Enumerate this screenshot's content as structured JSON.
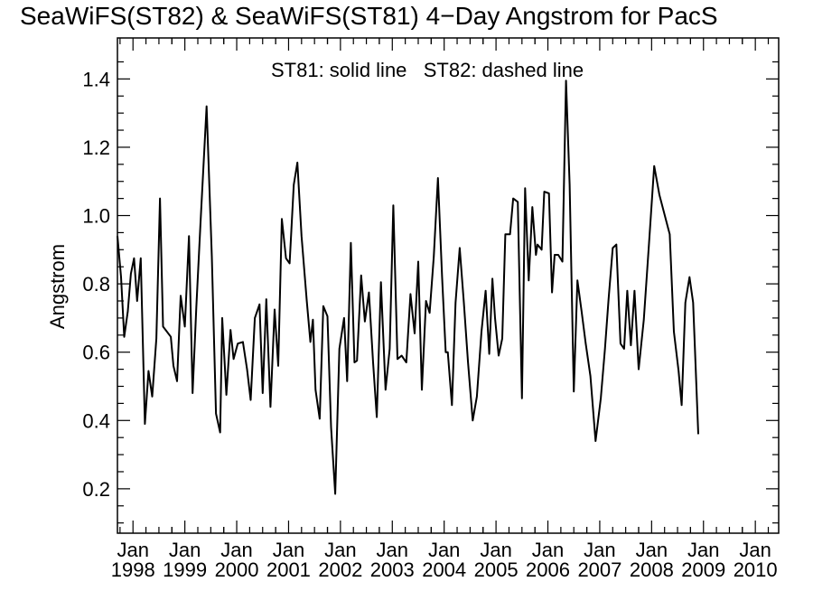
{
  "chart_data": {
    "type": "line",
    "title": "SeaWiFS(ST82) & SeaWiFS(ST81) 4−Day Angstrom for PacS",
    "ylabel": "Angstrom",
    "xlabel": "",
    "annotation": "ST81: solid line   ST82: dashed line",
    "ylim": [
      0.07,
      1.52
    ],
    "xlim": [
      1997.7,
      2010.45
    ],
    "yticks": [
      0.2,
      0.4,
      0.6,
      0.8,
      1.0,
      1.2,
      1.4
    ],
    "ytick_labels": [
      "0.2",
      "0.4",
      "0.6",
      "0.8",
      "1.0",
      "1.2",
      "1.4"
    ],
    "xticks": [
      1998,
      1999,
      2000,
      2001,
      2002,
      2003,
      2004,
      2005,
      2006,
      2007,
      2008,
      2009,
      2010
    ],
    "xtick_month": "Jan",
    "xtick_years": [
      "1998",
      "1999",
      "2000",
      "2001",
      "2002",
      "2003",
      "2004",
      "2005",
      "2006",
      "2007",
      "2008",
      "2009",
      "2010"
    ],
    "grid": false,
    "line_color": "#000000",
    "series": [
      {
        "values": [
          [
            1997.7,
            0.94
          ],
          [
            1997.77,
            0.82
          ],
          [
            1997.83,
            0.645
          ],
          [
            1997.9,
            0.72
          ],
          [
            1997.96,
            0.83
          ],
          [
            1998.02,
            0.875
          ],
          [
            1998.08,
            0.75
          ],
          [
            1998.15,
            0.875
          ],
          [
            1998.23,
            0.39
          ],
          [
            1998.3,
            0.545
          ],
          [
            1998.37,
            0.47
          ],
          [
            1998.45,
            0.64
          ],
          [
            1998.52,
            1.05
          ],
          [
            1998.58,
            0.675
          ],
          [
            1998.73,
            0.645
          ],
          [
            1998.78,
            0.56
          ],
          [
            1998.85,
            0.515
          ],
          [
            1998.92,
            0.765
          ],
          [
            1999.0,
            0.675
          ],
          [
            1999.08,
            0.94
          ],
          [
            1999.15,
            0.48
          ],
          [
            1999.22,
            0.73
          ],
          [
            1999.3,
            0.975
          ],
          [
            1999.42,
            1.32
          ],
          [
            1999.52,
            0.88
          ],
          [
            1999.6,
            0.42
          ],
          [
            1999.68,
            0.365
          ],
          [
            1999.72,
            0.7
          ],
          [
            1999.8,
            0.475
          ],
          [
            1999.88,
            0.665
          ],
          [
            1999.94,
            0.58
          ],
          [
            2000.02,
            0.625
          ],
          [
            2000.12,
            0.63
          ],
          [
            2000.2,
            0.55
          ],
          [
            2000.27,
            0.46
          ],
          [
            2000.35,
            0.7
          ],
          [
            2000.44,
            0.74
          ],
          [
            2000.5,
            0.48
          ],
          [
            2000.57,
            0.755
          ],
          [
            2000.65,
            0.44
          ],
          [
            2000.73,
            0.725
          ],
          [
            2000.8,
            0.56
          ],
          [
            2000.87,
            0.99
          ],
          [
            2000.95,
            0.875
          ],
          [
            2001.02,
            0.86
          ],
          [
            2001.1,
            1.09
          ],
          [
            2001.17,
            1.155
          ],
          [
            2001.25,
            0.94
          ],
          [
            2001.35,
            0.75
          ],
          [
            2001.42,
            0.63
          ],
          [
            2001.47,
            0.695
          ],
          [
            2001.52,
            0.49
          ],
          [
            2001.6,
            0.405
          ],
          [
            2001.67,
            0.735
          ],
          [
            2001.75,
            0.705
          ],
          [
            2001.82,
            0.38
          ],
          [
            2001.9,
            0.185
          ],
          [
            2001.98,
            0.61
          ],
          [
            2002.07,
            0.7
          ],
          [
            2002.13,
            0.515
          ],
          [
            2002.2,
            0.92
          ],
          [
            2002.27,
            0.57
          ],
          [
            2002.32,
            0.575
          ],
          [
            2002.4,
            0.825
          ],
          [
            2002.47,
            0.69
          ],
          [
            2002.55,
            0.775
          ],
          [
            2002.63,
            0.57
          ],
          [
            2002.7,
            0.41
          ],
          [
            2002.78,
            0.805
          ],
          [
            2002.87,
            0.49
          ],
          [
            2002.95,
            0.61
          ],
          [
            2003.02,
            1.03
          ],
          [
            2003.1,
            0.58
          ],
          [
            2003.18,
            0.59
          ],
          [
            2003.27,
            0.57
          ],
          [
            2003.35,
            0.77
          ],
          [
            2003.43,
            0.655
          ],
          [
            2003.5,
            0.865
          ],
          [
            2003.57,
            0.49
          ],
          [
            2003.65,
            0.75
          ],
          [
            2003.72,
            0.715
          ],
          [
            2003.8,
            0.88
          ],
          [
            2003.88,
            1.11
          ],
          [
            2003.96,
            0.82
          ],
          [
            2004.03,
            0.6
          ],
          [
            2004.07,
            0.6
          ],
          [
            2004.15,
            0.445
          ],
          [
            2004.22,
            0.745
          ],
          [
            2004.3,
            0.905
          ],
          [
            2004.38,
            0.745
          ],
          [
            2004.46,
            0.57
          ],
          [
            2004.55,
            0.4
          ],
          [
            2004.63,
            0.47
          ],
          [
            2004.72,
            0.66
          ],
          [
            2004.8,
            0.78
          ],
          [
            2004.87,
            0.595
          ],
          [
            2004.93,
            0.815
          ],
          [
            2004.98,
            0.7
          ],
          [
            2005.05,
            0.59
          ],
          [
            2005.12,
            0.64
          ],
          [
            2005.18,
            0.945
          ],
          [
            2005.27,
            0.945
          ],
          [
            2005.33,
            1.05
          ],
          [
            2005.42,
            1.04
          ],
          [
            2005.5,
            0.465
          ],
          [
            2005.56,
            1.08
          ],
          [
            2005.63,
            0.81
          ],
          [
            2005.7,
            1.025
          ],
          [
            2005.77,
            0.885
          ],
          [
            2005.8,
            0.915
          ],
          [
            2005.88,
            0.9
          ],
          [
            2005.93,
            1.07
          ],
          [
            2006.02,
            1.065
          ],
          [
            2006.08,
            0.775
          ],
          [
            2006.13,
            0.885
          ],
          [
            2006.2,
            0.885
          ],
          [
            2006.28,
            0.865
          ],
          [
            2006.35,
            1.395
          ],
          [
            2006.42,
            1.09
          ],
          [
            2006.5,
            0.485
          ],
          [
            2006.57,
            0.81
          ],
          [
            2006.65,
            0.72
          ],
          [
            2006.73,
            0.625
          ],
          [
            2006.82,
            0.53
          ],
          [
            2006.92,
            0.34
          ],
          [
            2007.02,
            0.465
          ],
          [
            2007.1,
            0.61
          ],
          [
            2007.17,
            0.755
          ],
          [
            2007.25,
            0.905
          ],
          [
            2007.32,
            0.915
          ],
          [
            2007.4,
            0.625
          ],
          [
            2007.47,
            0.61
          ],
          [
            2007.53,
            0.78
          ],
          [
            2007.6,
            0.62
          ],
          [
            2007.67,
            0.78
          ],
          [
            2007.75,
            0.55
          ],
          [
            2007.85,
            0.695
          ],
          [
            2007.95,
            0.92
          ],
          [
            2008.05,
            1.145
          ],
          [
            2008.15,
            1.06
          ],
          [
            2008.35,
            0.945
          ],
          [
            2008.43,
            0.66
          ],
          [
            2008.52,
            0.545
          ],
          [
            2008.58,
            0.445
          ],
          [
            2008.65,
            0.745
          ],
          [
            2008.73,
            0.82
          ],
          [
            2008.8,
            0.745
          ],
          [
            2008.9,
            0.36
          ]
        ]
      }
    ]
  }
}
